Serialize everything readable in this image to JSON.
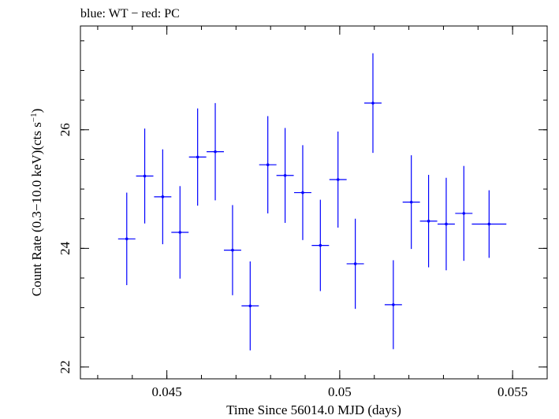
{
  "chart_data": {
    "type": "scatter",
    "title": "blue: WT − red: PC",
    "xlabel": "Time Since 56014.0 MJD (days)",
    "ylabel_main": "Count Rate (0.3−10.0 keV)(cts s",
    "ylabel_sup": "−1",
    "ylabel_close": ")",
    "xlim": [
      0.0425,
      0.056
    ],
    "ylim": [
      21.8,
      27.75
    ],
    "xticks": [
      0.045,
      0.05,
      0.055
    ],
    "xtick_labels": [
      "0.045",
      "0.05",
      "0.055"
    ],
    "yticks": [
      22,
      24,
      26
    ],
    "ytick_labels": [
      "22",
      "24",
      "26"
    ],
    "grid": false,
    "series": [
      {
        "color": "#0000ff",
        "points": [
          {
            "x": 0.04384,
            "xerr": 0.00025,
            "y": 24.16,
            "yerr": 0.78
          },
          {
            "x": 0.04436,
            "xerr": 0.00025,
            "y": 25.22,
            "yerr": 0.8
          },
          {
            "x": 0.04488,
            "xerr": 0.00025,
            "y": 24.87,
            "yerr": 0.8
          },
          {
            "x": 0.04538,
            "xerr": 0.00025,
            "y": 24.27,
            "yerr": 0.78
          },
          {
            "x": 0.04589,
            "xerr": 0.00025,
            "y": 25.54,
            "yerr": 0.82
          },
          {
            "x": 0.0464,
            "xerr": 0.00025,
            "y": 25.63,
            "yerr": 0.82
          },
          {
            "x": 0.0469,
            "xerr": 0.00025,
            "y": 23.97,
            "yerr": 0.76
          },
          {
            "x": 0.04741,
            "xerr": 0.00025,
            "y": 23.03,
            "yerr": 0.75
          },
          {
            "x": 0.04792,
            "xerr": 0.00025,
            "y": 25.41,
            "yerr": 0.82
          },
          {
            "x": 0.04842,
            "xerr": 0.00025,
            "y": 25.23,
            "yerr": 0.8
          },
          {
            "x": 0.04893,
            "xerr": 0.00025,
            "y": 24.94,
            "yerr": 0.8
          },
          {
            "x": 0.04944,
            "xerr": 0.00025,
            "y": 24.05,
            "yerr": 0.77
          },
          {
            "x": 0.04995,
            "xerr": 0.00025,
            "y": 25.16,
            "yerr": 0.81
          },
          {
            "x": 0.05045,
            "xerr": 0.00025,
            "y": 23.74,
            "yerr": 0.76
          },
          {
            "x": 0.05096,
            "xerr": 0.00025,
            "y": 26.45,
            "yerr": 0.84
          },
          {
            "x": 0.05155,
            "xerr": 0.00025,
            "y": 23.05,
            "yerr": 0.75
          },
          {
            "x": 0.05207,
            "xerr": 0.00025,
            "y": 24.78,
            "yerr": 0.79
          },
          {
            "x": 0.05257,
            "xerr": 0.00025,
            "y": 24.46,
            "yerr": 0.78
          },
          {
            "x": 0.05308,
            "xerr": 0.00025,
            "y": 24.41,
            "yerr": 0.78
          },
          {
            "x": 0.05359,
            "xerr": 0.00025,
            "y": 24.59,
            "yerr": 0.8
          },
          {
            "x": 0.05432,
            "xerr": 0.0005,
            "y": 24.41,
            "yerr": 0.57
          }
        ]
      }
    ]
  }
}
